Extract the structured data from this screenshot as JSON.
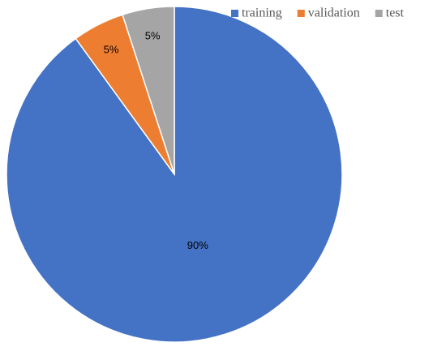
{
  "chart_data": {
    "type": "pie",
    "categories": [
      "training",
      "validation",
      "test"
    ],
    "values": [
      90,
      5,
      5
    ],
    "value_labels": [
      "90%",
      "5%",
      "5%"
    ],
    "colors": [
      "#4472c4",
      "#ed7d31",
      "#a5a5a5"
    ],
    "legend": "top-right"
  }
}
